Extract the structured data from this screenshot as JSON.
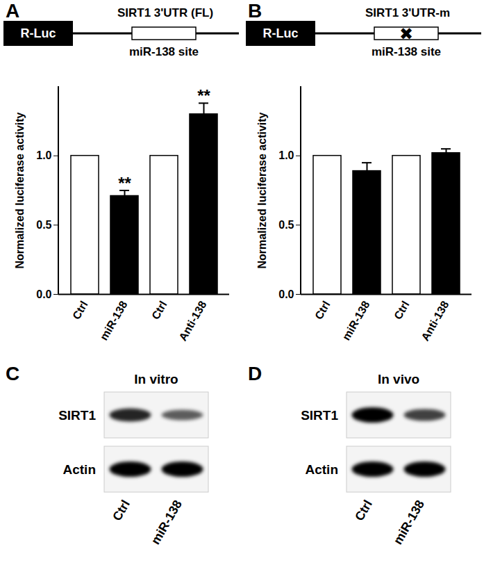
{
  "chart_data": [
    {
      "panel": "A",
      "type": "bar",
      "construct": {
        "reporter": "R-Luc",
        "utr": "SIRT1 3'UTR (FL)",
        "site": "miR-138 site"
      },
      "categories": [
        "Ctrl",
        "miR-138",
        "Ctrl",
        "Anti-138"
      ],
      "values": [
        1.0,
        0.71,
        1.0,
        1.3
      ],
      "errors": [
        null,
        0.04,
        null,
        0.08
      ],
      "significance": [
        null,
        "**",
        null,
        "**"
      ],
      "colors": [
        "#ffffff",
        "#000000",
        "#ffffff",
        "#000000"
      ],
      "y_label": "Normalized luciferase activity",
      "ylim": [
        0,
        1.5
      ],
      "yticks": [
        {
          "value": 0,
          "label": "0.0"
        },
        {
          "value": 0.5,
          "label": "0.5"
        },
        {
          "value": 1,
          "label": "1.0"
        }
      ]
    },
    {
      "panel": "B",
      "type": "bar",
      "construct": {
        "reporter": "R-Luc",
        "utr": "SIRT1 3'UTR-m",
        "site": "miR-138 site",
        "site_mark": "✖"
      },
      "categories": [
        "Ctrl",
        "miR-138",
        "Ctrl",
        "Anti-138"
      ],
      "values": [
        1.0,
        0.89,
        1.0,
        1.02
      ],
      "errors": [
        null,
        0.06,
        null,
        0.03
      ],
      "colors": [
        "#ffffff",
        "#000000",
        "#ffffff",
        "#000000"
      ],
      "y_label": "Normalized luciferase activity",
      "ylim": [
        0,
        1.5
      ],
      "yticks": [
        {
          "value": 0,
          "label": "0.0"
        },
        {
          "value": 0.5,
          "label": "0.5"
        },
        {
          "value": 1,
          "label": "1.0"
        }
      ]
    }
  ],
  "blots": [
    {
      "panel": "C",
      "title": "In vitro",
      "lanes": [
        "Ctrl",
        "miR-138"
      ],
      "rows": [
        {
          "label": "SIRT1",
          "intensity": [
            0.8,
            0.5
          ]
        },
        {
          "label": "Actin",
          "intensity": [
            1.0,
            1.0
          ]
        }
      ]
    },
    {
      "panel": "D",
      "title": "In vivo",
      "lanes": [
        "Ctrl",
        "miR-138"
      ],
      "rows": [
        {
          "label": "SIRT1",
          "intensity": [
            1.0,
            0.65
          ]
        },
        {
          "label": "Actin",
          "intensity": [
            1.0,
            1.0
          ]
        }
      ]
    }
  ]
}
